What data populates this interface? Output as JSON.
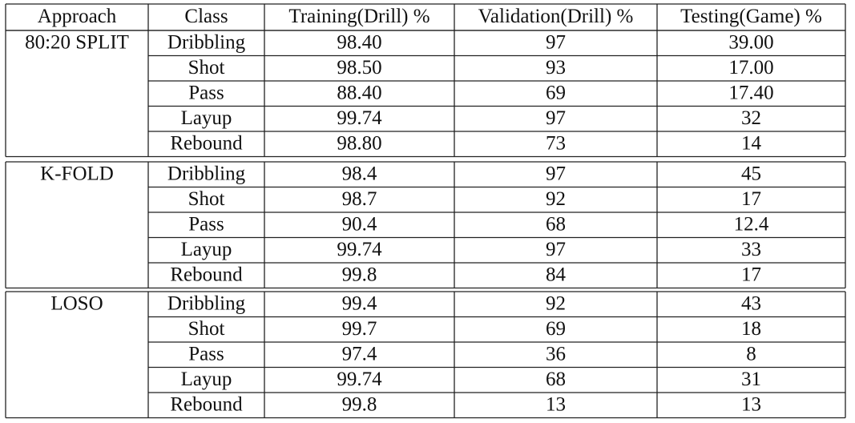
{
  "table": {
    "header": [
      "Approach",
      "Class",
      "Training(Drill) %",
      "Validation(Drill) %",
      "Testing(Game) %"
    ],
    "groups": [
      {
        "approach": "80:20 SPLIT",
        "rows": [
          [
            "Dribbling",
            "98.40",
            "97",
            "39.00"
          ],
          [
            "Shot",
            "98.50",
            "93",
            "17.00"
          ],
          [
            "Pass",
            "88.40",
            "69",
            "17.40"
          ],
          [
            "Layup",
            "99.74",
            "97",
            "32"
          ],
          [
            "Rebound",
            "98.80",
            "73",
            "14"
          ]
        ]
      },
      {
        "approach": "K-FOLD",
        "rows": [
          [
            "Dribbling",
            "98.4",
            "97",
            "45"
          ],
          [
            "Shot",
            "98.7",
            "92",
            "17"
          ],
          [
            "Pass",
            "90.4",
            "68",
            "12.4"
          ],
          [
            "Layup",
            "99.74",
            "97",
            "33"
          ],
          [
            "Rebound",
            "99.8",
            "84",
            "17"
          ]
        ]
      },
      {
        "approach": "LOSO",
        "rows": [
          [
            "Dribbling",
            "99.4",
            "92",
            "43"
          ],
          [
            "Shot",
            "99.7",
            "69",
            "18"
          ],
          [
            "Pass",
            "97.4",
            "36",
            "8"
          ],
          [
            "Layup",
            "99.74",
            "68",
            "31"
          ],
          [
            "Rebound",
            "99.8",
            "13",
            "13"
          ]
        ]
      }
    ]
  }
}
